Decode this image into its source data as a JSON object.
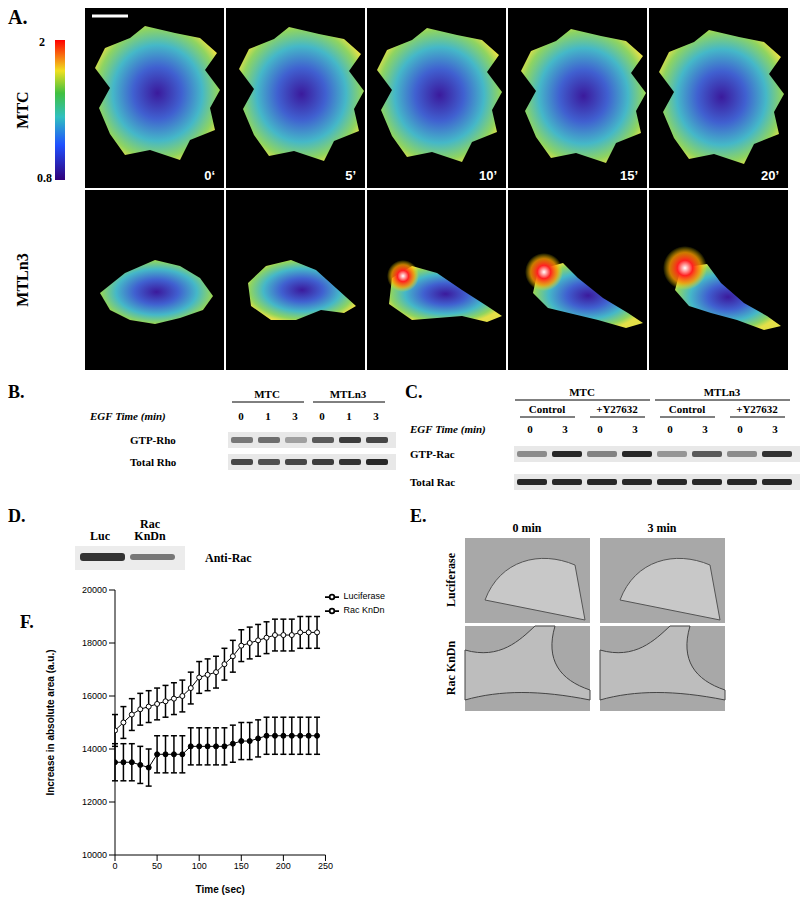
{
  "panels": {
    "A": {
      "label": "A.",
      "rows": [
        "MTC",
        "MTLn3"
      ],
      "times": [
        "0‘",
        "5’",
        "10’",
        "15’",
        "20’"
      ],
      "colorbar": {
        "range": [
          0.8,
          2
        ]
      }
    },
    "B": {
      "label": "B.",
      "groups": [
        "MTC",
        "MTLn3"
      ],
      "time_label": "EGF Time (min)",
      "times": [
        0,
        1,
        3,
        0,
        1,
        3
      ],
      "rows": [
        "GTP-Rho",
        "Total Rho"
      ]
    },
    "C": {
      "label": "C.",
      "groups": [
        "MTC",
        "MTLn3"
      ],
      "conditions": [
        "Control",
        "+Y27632",
        "Control",
        "+Y27632"
      ],
      "time_label": "EGF Time (min)",
      "times": [
        0,
        3,
        0,
        3,
        0,
        3,
        0,
        3
      ],
      "rows": [
        "GTP-Rac",
        "Total Rac"
      ]
    },
    "D": {
      "label": "D.",
      "lanes": [
        "Luc",
        "Rac KnDn"
      ],
      "row": "Anti-Rac"
    },
    "E": {
      "label": "E.",
      "columns": [
        "0 min",
        "3 min"
      ],
      "rows": [
        "Luciferase",
        "Rac KnDn"
      ]
    },
    "F": {
      "label": "F."
    }
  },
  "chart_data": {
    "type": "line",
    "x_label": "Time (sec)",
    "y_label": "Increase in absolute area (a.u.)",
    "x": [
      0,
      10,
      20,
      30,
      40,
      50,
      60,
      70,
      80,
      90,
      100,
      110,
      120,
      130,
      140,
      150,
      160,
      170,
      180,
      190,
      200,
      210,
      220,
      230,
      240
    ],
    "xlim": [
      0,
      250
    ],
    "xticks": [
      0,
      50,
      100,
      150,
      200,
      250
    ],
    "ylim": [
      10000,
      20000
    ],
    "yticks": [
      10000,
      12000,
      14000,
      16000,
      18000,
      20000
    ],
    "legend": "upper right",
    "series": [
      {
        "name": "Luciferase",
        "color": "#000000",
        "marker": "open_circle",
        "values": [
          14700,
          15000,
          15300,
          15500,
          15600,
          15700,
          15800,
          15900,
          16000,
          16300,
          16700,
          16800,
          16900,
          17200,
          17500,
          17900,
          18000,
          18100,
          18200,
          18300,
          18300,
          18300,
          18400,
          18400,
          18400
        ],
        "errors": [
          600,
          600,
          600,
          600,
          600,
          600,
          600,
          600,
          600,
          600,
          600,
          600,
          600,
          600,
          600,
          600,
          600,
          600,
          600,
          600,
          600,
          600,
          600,
          600,
          600
        ]
      },
      {
        "name": "Rac KnDn",
        "color": "#000000",
        "marker": "circle",
        "values": [
          13500,
          13500,
          13500,
          13400,
          13300,
          13800,
          13800,
          13800,
          13800,
          14100,
          14100,
          14100,
          14100,
          14100,
          14200,
          14300,
          14300,
          14400,
          14500,
          14500,
          14500,
          14500,
          14500,
          14500,
          14500
        ],
        "errors": [
          700,
          700,
          700,
          700,
          700,
          700,
          700,
          700,
          700,
          700,
          700,
          700,
          700,
          700,
          700,
          700,
          700,
          700,
          700,
          700,
          700,
          700,
          700,
          700,
          700
        ]
      }
    ]
  }
}
